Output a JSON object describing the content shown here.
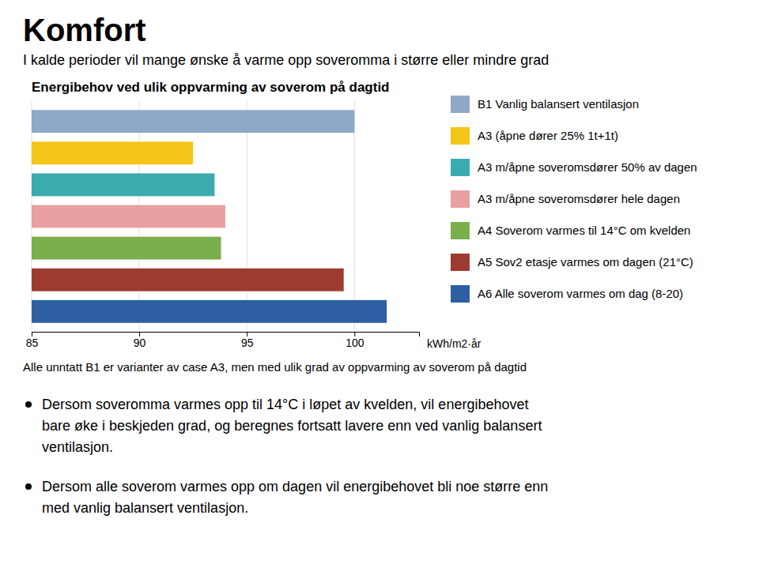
{
  "title": "Komfort",
  "subtitle": "I kalde perioder vil mange ønske å varme opp soveromma i større eller mindre grad",
  "note": "Alle unntatt B1 er varianter av case A3, men med ulik grad av oppvarming av soverom på dagtid",
  "bullets": [
    [
      "Dersom soveromma varmes opp til 14°C i løpet av kvelden, vil energibehovet",
      "bare øke i beskjeden grad, og beregnes fortsatt lavere enn ved vanlig balansert",
      "ventilasjon."
    ],
    [
      "Dersom alle soverom varmes opp om dagen vil energibehovet bli noe større enn",
      "med vanlig balansert ventilasjon."
    ]
  ],
  "chart_data": {
    "type": "bar",
    "orientation": "horizontal",
    "title": "Energibehov ved ulik oppvarming av soverom på dagtid",
    "categories": [
      "B1  Vanlig balansert ventilasjon",
      "A3   (åpne dører 25% 1t+1t)",
      "A3 m/åpne soveromsdører 50% av dagen",
      "A3 m/åpne soveromsdører hele dagen",
      "A4 Soverom varmes til 14°C om kvelden",
      "A5 Sov2 etasje varmes om dagen (21°C)",
      "A6 Alle soverom varmes om dag (8-20)"
    ],
    "values": [
      100.0,
      92.5,
      93.5,
      94.0,
      93.8,
      99.5,
      101.5
    ],
    "colors": [
      "#8FA8C8",
      "#F5C518",
      "#3AACB0",
      "#E8A0A0",
      "#7BAF4C",
      "#9E3B30",
      "#2E5FA3"
    ],
    "xlim": [
      85,
      103
    ],
    "xticks": [
      85,
      90,
      95,
      100
    ],
    "xlabel": "kWh/m2·år",
    "grid": true,
    "legend": "right",
    "tick_labels": "x"
  }
}
